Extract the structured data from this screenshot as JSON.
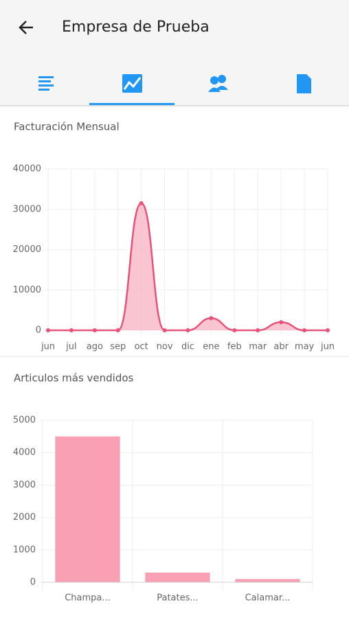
{
  "header": {
    "title": "Empresa de Prueba"
  },
  "chart_data": [
    {
      "type": "line",
      "title": "Facturación Mensual",
      "categories": [
        "jun",
        "jul",
        "ago",
        "sep",
        "oct",
        "nov",
        "dic",
        "ene",
        "feb",
        "mar",
        "abr",
        "may",
        "jun"
      ],
      "values": [
        0,
        0,
        0,
        0,
        31500,
        0,
        0,
        3000,
        0,
        0,
        2000,
        0,
        0
      ],
      "color": "#e8527a",
      "fill": "#f7b6c6",
      "ylim": [
        0,
        40000
      ],
      "yticks": [
        0,
        10000,
        20000,
        30000,
        40000
      ],
      "grid": true
    },
    {
      "type": "bar",
      "title": "Articulos más vendidos",
      "categories": [
        "Champa...",
        "Patates...",
        "Calamar..."
      ],
      "values": [
        4500,
        300,
        100
      ],
      "color": "#f9a0b4",
      "ylim": [
        0,
        5000
      ],
      "yticks": [
        0,
        1000,
        2000,
        3000,
        4000,
        5000
      ],
      "grid": true
    }
  ]
}
